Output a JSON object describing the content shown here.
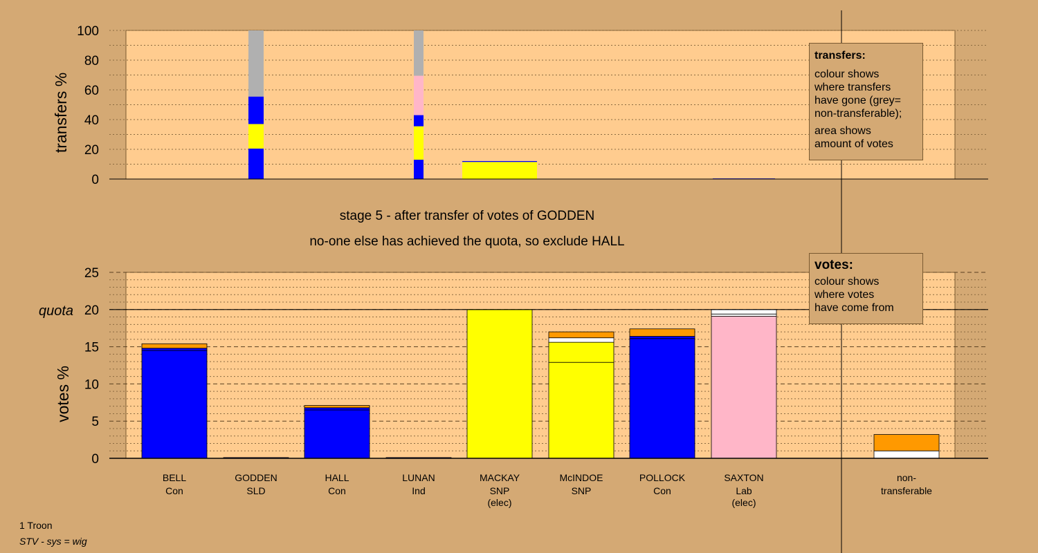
{
  "chart_data": [
    {
      "type": "bar",
      "stacked": true,
      "ylabel": "transfers %",
      "ylim": [
        0,
        100
      ],
      "yticks": [
        0,
        20,
        40,
        60,
        80,
        100
      ],
      "grid": true,
      "categories": [
        "BELL",
        "GODDEN",
        "HALL",
        "LUNAN",
        "MACKAY",
        "McINDOE",
        "POLLOCK",
        "SAXTON",
        "",
        "non-transferable"
      ],
      "bars": [
        {
          "category": "GODDEN",
          "segments": [
            {
              "value": 20.5,
              "color": "#0000ff"
            },
            {
              "value": 16.5,
              "color": "#ffff00"
            },
            {
              "value": 18.5,
              "color": "#0000ff"
            },
            {
              "value": 44.5,
              "color": "#b0b0b0"
            }
          ]
        },
        {
          "category": "LUNAN",
          "segments": [
            {
              "value": 13,
              "color": "#0000ff"
            },
            {
              "value": 22.5,
              "color": "#ffff00"
            },
            {
              "value": 7.5,
              "color": "#0000ff"
            },
            {
              "value": 26.5,
              "color": "#ffb6c8"
            },
            {
              "value": 30.5,
              "color": "#b0b0b0"
            }
          ]
        },
        {
          "category": "MACKAY",
          "segments": [
            {
              "value": 11.5,
              "color": "#ffff00"
            },
            {
              "value": 0.6,
              "color": "#0000ff"
            }
          ]
        },
        {
          "category": "SAXTON",
          "segments": [
            {
              "value": 0.4,
              "color": "#0000ff"
            }
          ]
        }
      ]
    },
    {
      "type": "bar",
      "stacked": true,
      "ylabel": "votes %",
      "ylim": [
        0,
        25
      ],
      "yticks": [
        0,
        5,
        10,
        15,
        20,
        25
      ],
      "quota": 20,
      "quota_label": "quota",
      "grid": true,
      "bars": [
        {
          "category": "BELL",
          "segments": [
            {
              "value": 14.5,
              "color": "#0000ff"
            },
            {
              "value": 0.3,
              "color": "#0000ff"
            },
            {
              "value": 0.6,
              "color": "#ff9900"
            }
          ]
        },
        {
          "category": "GODDEN",
          "segments": [
            {
              "value": 0.1,
              "color": "#0000ff"
            }
          ]
        },
        {
          "category": "HALL",
          "segments": [
            {
              "value": 6.5,
              "color": "#0000ff"
            },
            {
              "value": 0.3,
              "color": "#0000ff"
            },
            {
              "value": 0.3,
              "color": "#ff9900"
            }
          ]
        },
        {
          "category": "LUNAN",
          "segments": [
            {
              "value": 0.1,
              "color": "#0000ff"
            }
          ]
        },
        {
          "category": "MACKAY",
          "segments": [
            {
              "value": 20,
              "color": "#ffff00"
            }
          ]
        },
        {
          "category": "McINDOE",
          "segments": [
            {
              "value": 12.9,
              "color": "#ffff00"
            },
            {
              "value": 2.7,
              "color": "#ffff00"
            },
            {
              "value": 0.6,
              "color": "#ffffff"
            },
            {
              "value": 0.8,
              "color": "#ff9900"
            }
          ]
        },
        {
          "category": "POLLOCK",
          "segments": [
            {
              "value": 16.1,
              "color": "#0000ff"
            },
            {
              "value": 0.3,
              "color": "#0000ff"
            },
            {
              "value": 1.0,
              "color": "#ff9900"
            }
          ]
        },
        {
          "category": "SAXTON",
          "segments": [
            {
              "value": 19.1,
              "color": "#ffb6c8"
            },
            {
              "value": 0.3,
              "color": "#ffffff"
            },
            {
              "value": 0.6,
              "color": "#ffffff"
            }
          ]
        },
        {
          "category": "non-transferable",
          "segments": [
            {
              "value": 1.0,
              "color": "#ffffff"
            },
            {
              "value": 2.2,
              "color": "#ff9900"
            }
          ]
        }
      ]
    }
  ],
  "stage_title": "stage 5 - after transfer of votes of GODDEN",
  "stage_subtitle": "no-one else has achieved the quota, so exclude HALL",
  "candidates": [
    {
      "name": "BELL",
      "party": "Con",
      "note": ""
    },
    {
      "name": "GODDEN",
      "party": "SLD",
      "note": ""
    },
    {
      "name": "HALL",
      "party": "Con",
      "note": ""
    },
    {
      "name": "LUNAN",
      "party": "Ind",
      "note": ""
    },
    {
      "name": "MACKAY",
      "party": "SNP",
      "note": "(elec)"
    },
    {
      "name": "McINDOE",
      "party": "SNP",
      "note": ""
    },
    {
      "name": "POLLOCK",
      "party": "Con",
      "note": ""
    },
    {
      "name": "SAXTON",
      "party": "Lab",
      "note": "(elec)"
    }
  ],
  "nontransferable_label": [
    "non-",
    "transferable"
  ],
  "legend_transfers": {
    "title": "transfers:",
    "line1": "colour shows",
    "line2": "where transfers",
    "line3": "have gone (grey=",
    "line4": "non-transferable);",
    "line5": "area shows",
    "line6": "amount of votes"
  },
  "legend_votes": {
    "title": "votes:",
    "line1": "colour shows",
    "line2": "where votes",
    "line3": "have come from"
  },
  "footer": {
    "ward": "1 Troon",
    "system": "STV - sys = wig"
  },
  "colors": {
    "background": "#d4a974",
    "plot_bg": "#ffcc8f",
    "con": "#0000ff",
    "snp": "#ffff00",
    "lab": "#ffb6c8",
    "grey": "#b0b0b0",
    "orange": "#ff9900",
    "white": "#ffffff"
  }
}
